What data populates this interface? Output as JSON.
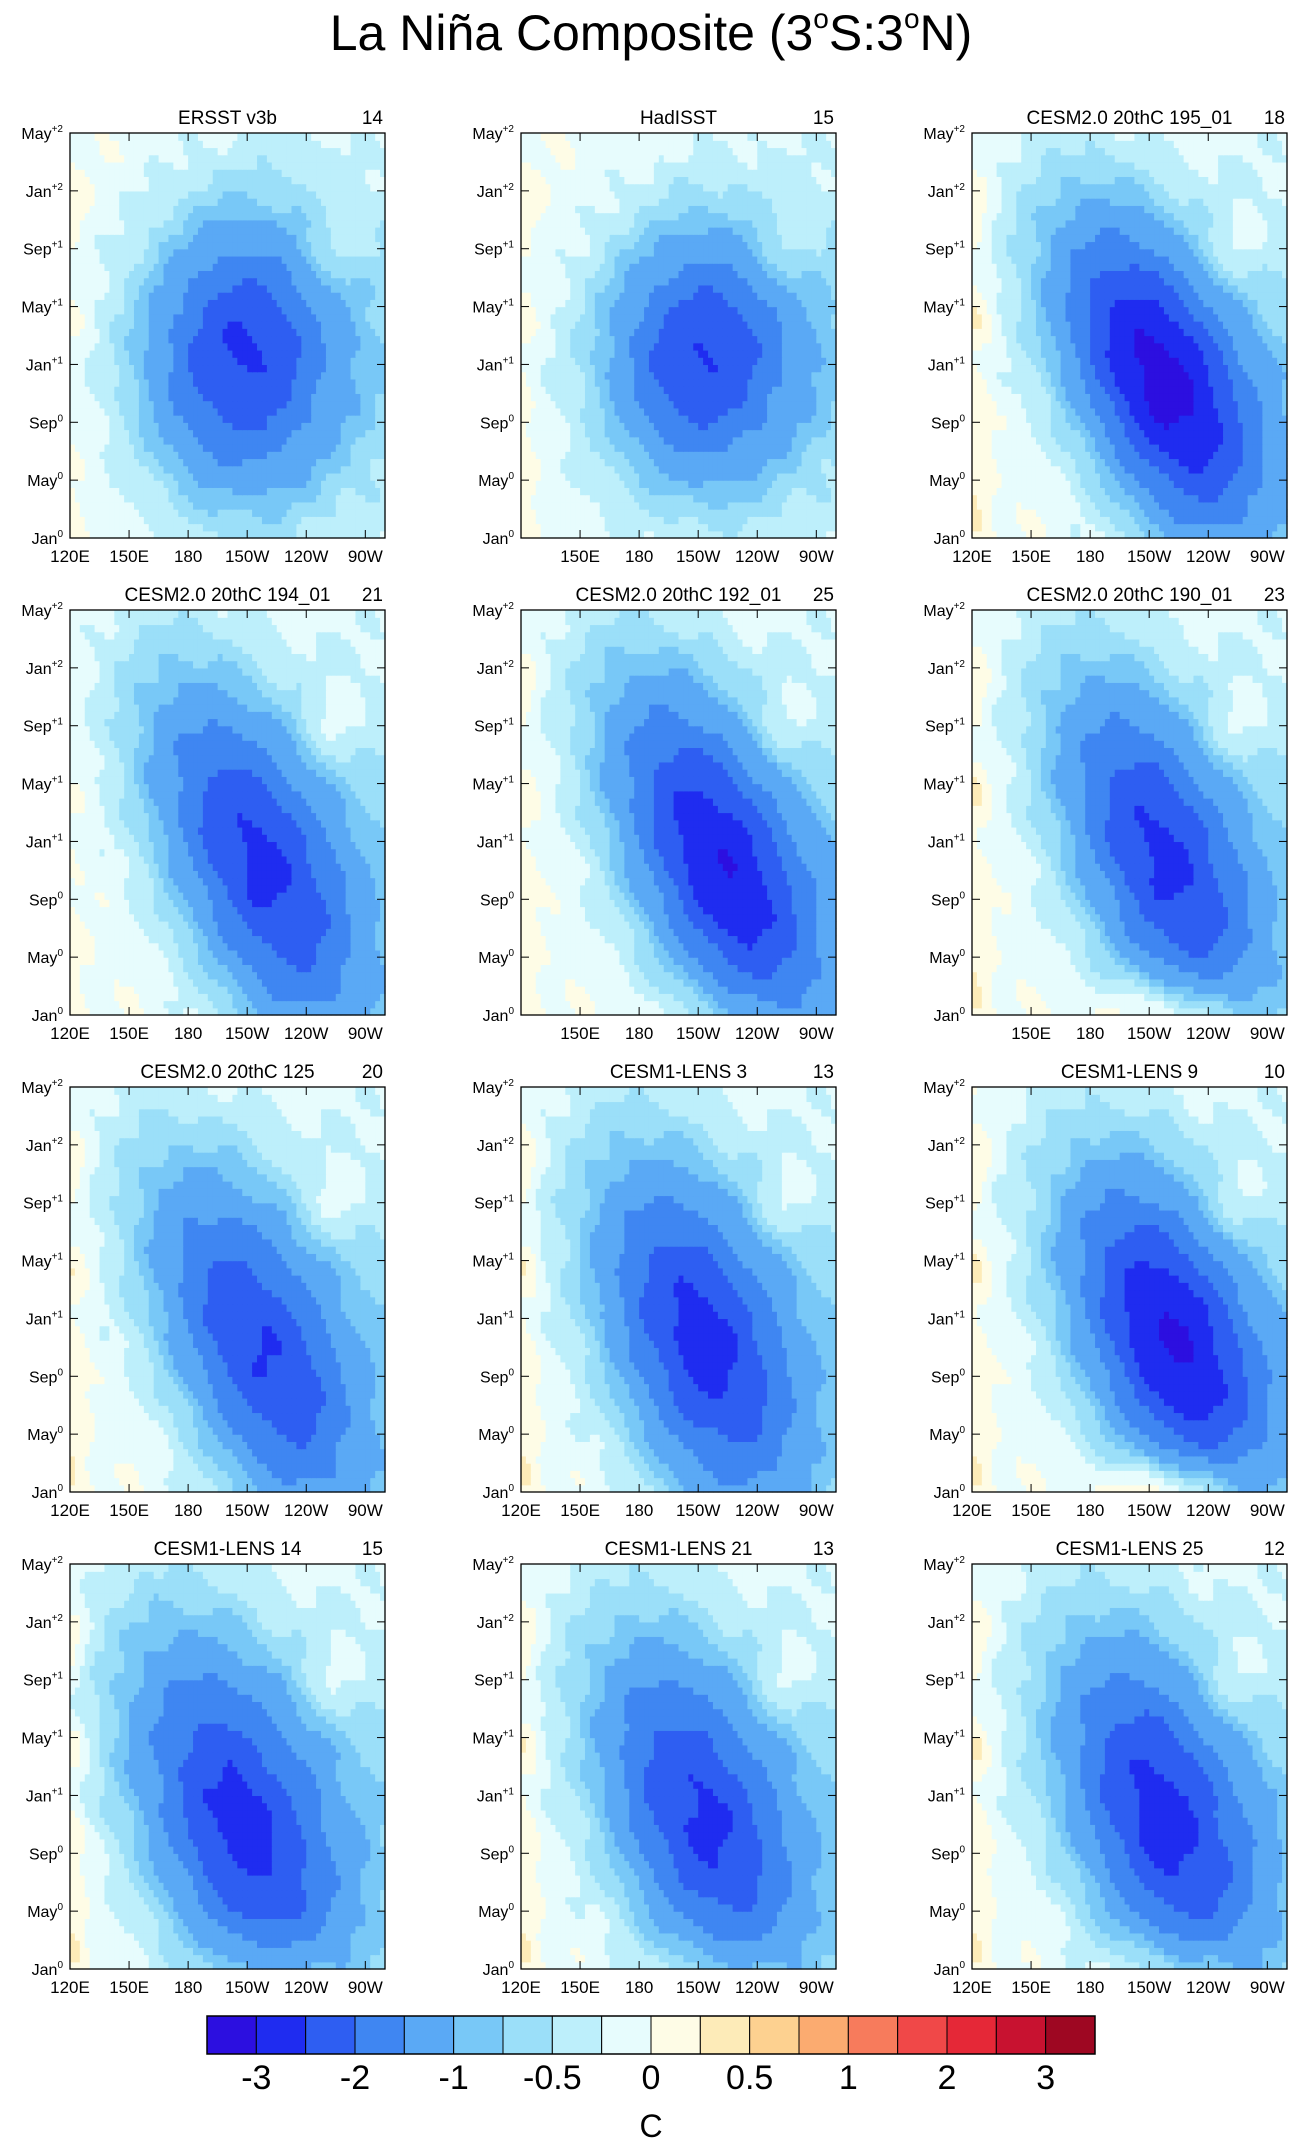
{
  "chart_data": {
    "type": "heatmap",
    "title": "La Niña Composite (3°S:3°N)",
    "title_main": "La Niña Composite (3",
    "title_sup1": "o",
    "title_mid": "S:3",
    "title_sup2": "o",
    "title_end": "N)",
    "description_units": "C",
    "x_ticks": [
      "120E",
      "150E",
      "180",
      "150W",
      "120W",
      "90W"
    ],
    "y_ticks": [
      {
        "base": "Jan",
        "sup": "0"
      },
      {
        "base": "May",
        "sup": "0"
      },
      {
        "base": "Sep",
        "sup": "0"
      },
      {
        "base": "Jan",
        "sup": "+1"
      },
      {
        "base": "May",
        "sup": "+1"
      },
      {
        "base": "Sep",
        "sup": "+1"
      },
      {
        "base": "Jan",
        "sup": "+2"
      },
      {
        "base": "May",
        "sup": "+2"
      }
    ],
    "x_range_deg_east": [
      120,
      280
    ],
    "y_range_months": [
      0,
      28
    ],
    "panels": [
      {
        "name": "ERSST v3b",
        "count": "14",
        "peak": -2.3,
        "peak_lon": 205,
        "peak_month": 12.5,
        "lon_width": 36,
        "month_width": 6.5,
        "tilt": 0.0,
        "warm_onset": 0.0,
        "west_warm": 0.15,
        "show_120E": true
      },
      {
        "name": "HadISST",
        "count": "15",
        "peak": -2.2,
        "peak_lon": 210,
        "peak_month": 12.5,
        "lon_width": 36,
        "month_width": 6.0,
        "tilt": 0.0,
        "warm_onset": 0.0,
        "west_warm": 0.2,
        "show_120E": false
      },
      {
        "name": "CESM2.0 20thC 195_01",
        "count": "18",
        "peak": -2.9,
        "peak_lon": 215,
        "peak_month": 11.0,
        "lon_width": 40,
        "month_width": 6.5,
        "tilt": -0.12,
        "warm_onset": 0.0,
        "west_warm": 0.35,
        "show_120E": true
      },
      {
        "name": "CESM2.0 20thC 194_01",
        "count": "21",
        "peak": -2.3,
        "peak_lon": 215,
        "peak_month": 10.5,
        "lon_width": 42,
        "month_width": 7.0,
        "tilt": -0.14,
        "warm_onset": 0.0,
        "west_warm": 0.1,
        "show_120E": true
      },
      {
        "name": "CESM2.0 20thC 192_01",
        "count": "25",
        "peak": -2.6,
        "peak_lon": 220,
        "peak_month": 10.5,
        "lon_width": 42,
        "month_width": 7.0,
        "tilt": -0.14,
        "warm_onset": 0.3,
        "west_warm": 0.25,
        "show_120E": false
      },
      {
        "name": "CESM2.0 20thC 190_01",
        "count": "23",
        "peak": -2.3,
        "peak_lon": 215,
        "peak_month": 11.0,
        "lon_width": 40,
        "month_width": 7.0,
        "tilt": -0.14,
        "warm_onset": 0.9,
        "west_warm": 0.35,
        "show_120E": false
      },
      {
        "name": "CESM2.0 20thC 125",
        "count": "20",
        "peak": -2.2,
        "peak_lon": 215,
        "peak_month": 10.0,
        "lon_width": 42,
        "month_width": 7.0,
        "tilt": -0.14,
        "warm_onset": 0.0,
        "west_warm": 0.3,
        "show_120E": true
      },
      {
        "name": "CESM1-LENS 3",
        "count": "13",
        "peak": -2.4,
        "peak_lon": 210,
        "peak_month": 10.5,
        "lon_width": 40,
        "month_width": 7.5,
        "tilt": -0.12,
        "warm_onset": 0.0,
        "west_warm": 0.35,
        "show_120E": true
      },
      {
        "name": "CESM1-LENS 9",
        "count": "10",
        "peak": -2.7,
        "peak_lon": 220,
        "peak_month": 10.5,
        "lon_width": 40,
        "month_width": 7.0,
        "tilt": -0.12,
        "warm_onset": 1.1,
        "west_warm": 0.35,
        "show_120E": true
      },
      {
        "name": "CESM1-LENS 14",
        "count": "15",
        "peak": -2.4,
        "peak_lon": 205,
        "peak_month": 10.0,
        "lon_width": 42,
        "month_width": 8.0,
        "tilt": -0.12,
        "warm_onset": 0.5,
        "west_warm": 0.35,
        "show_120E": true
      },
      {
        "name": "CESM1-LENS 21",
        "count": "13",
        "peak": -2.3,
        "peak_lon": 210,
        "peak_month": 10.5,
        "lon_width": 40,
        "month_width": 7.5,
        "tilt": -0.12,
        "warm_onset": 0.4,
        "west_warm": 0.35,
        "show_120E": true
      },
      {
        "name": "CESM1-LENS 25",
        "count": "12",
        "peak": -2.4,
        "peak_lon": 215,
        "peak_month": 10.5,
        "lon_width": 40,
        "month_width": 7.5,
        "tilt": -0.12,
        "warm_onset": 0.6,
        "west_warm": 0.35,
        "show_120E": true
      }
    ],
    "colorbar": {
      "levels": [
        -3,
        -2.5,
        -2,
        -1.5,
        -1,
        -0.75,
        -0.5,
        -0.25,
        0,
        0.25,
        0.5,
        0.75,
        1,
        1.5,
        2,
        2.5,
        3
      ],
      "labels": [
        {
          "text": "-3",
          "level": -3
        },
        {
          "text": "-2",
          "level": -2
        },
        {
          "text": "-1",
          "level": -1
        },
        {
          "text": "-0.5",
          "level": -0.5
        },
        {
          "text": "0",
          "level": 0
        },
        {
          "text": "0.5",
          "level": 0.5
        },
        {
          "text": "1",
          "level": 1
        },
        {
          "text": "2",
          "level": 2
        },
        {
          "text": "3",
          "level": 3
        }
      ],
      "colors": [
        "#2c0fe0",
        "#1f2cf0",
        "#2e5ef2",
        "#3f86f2",
        "#5aa9f5",
        "#78c8f7",
        "#9bdff9",
        "#bdeffb",
        "#e7fcfd",
        "#fefce6",
        "#fdebb8",
        "#fdd190",
        "#fbab70",
        "#f77b5c",
        "#f04848",
        "#e52837",
        "#c81230",
        "#9e0722"
      ],
      "label": "C"
    }
  }
}
